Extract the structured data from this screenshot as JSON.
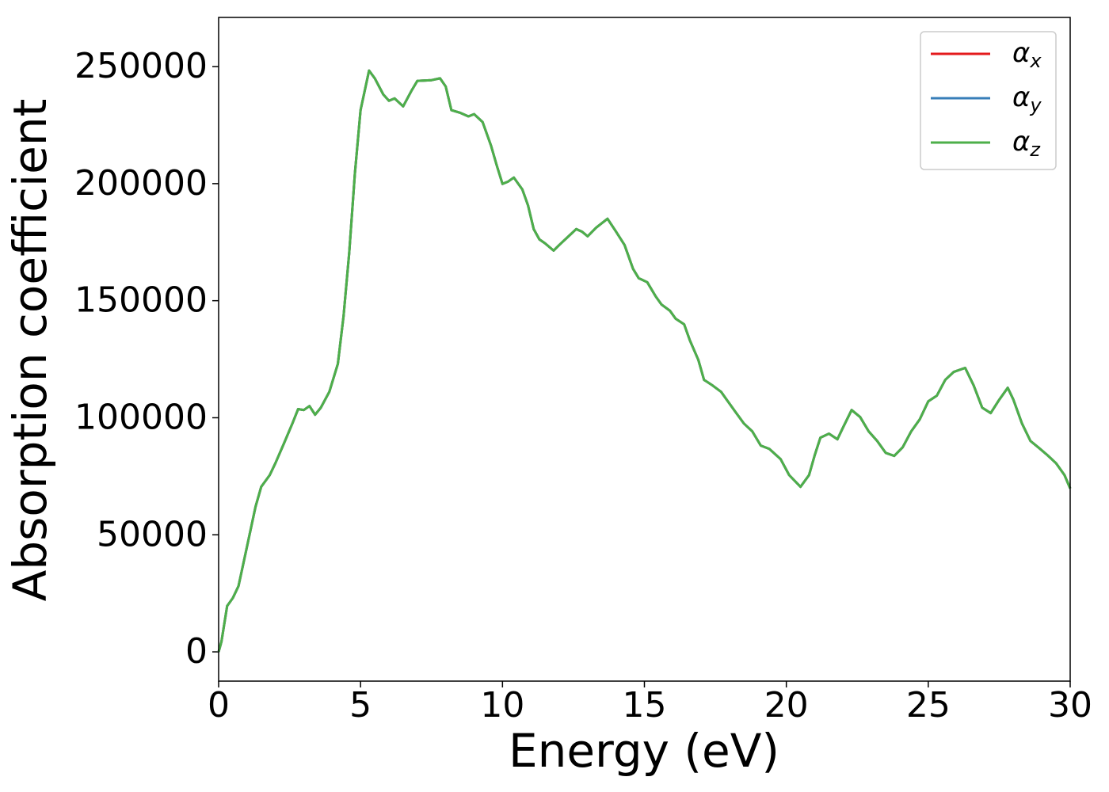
{
  "chart_data": {
    "type": "line",
    "x_label": "Energy (eV)",
    "y_label": "Absorption coefficient",
    "x": [
      0,
      0.1,
      0.3,
      0.5,
      0.7,
      1.0,
      1.3,
      1.5,
      1.8,
      2.0,
      2.3,
      2.6,
      2.8,
      3.0,
      3.2,
      3.4,
      3.6,
      3.9,
      4.2,
      4.4,
      4.6,
      4.8,
      5.0,
      5.3,
      5.5,
      5.8,
      6.0,
      6.2,
      6.5,
      6.8,
      7.0,
      7.5,
      7.8,
      8.0,
      8.2,
      8.5,
      8.8,
      9.0,
      9.3,
      9.6,
      9.8,
      10.0,
      10.2,
      10.4,
      10.7,
      10.9,
      11.1,
      11.3,
      11.5,
      11.8,
      12.0,
      12.3,
      12.6,
      12.8,
      13.0,
      13.3,
      13.7,
      14.0,
      14.3,
      14.6,
      14.8,
      15.1,
      15.4,
      15.6,
      15.9,
      16.1,
      16.4,
      16.6,
      16.9,
      17.1,
      17.4,
      17.7,
      17.9,
      18.2,
      18.5,
      18.8,
      19.1,
      19.4,
      19.8,
      20.1,
      20.5,
      20.8,
      21.0,
      21.2,
      21.5,
      21.8,
      22.0,
      22.3,
      22.6,
      22.9,
      23.2,
      23.5,
      23.8,
      24.1,
      24.4,
      24.7,
      25.0,
      25.3,
      25.6,
      25.9,
      26.3,
      26.6,
      26.9,
      27.2,
      27.5,
      27.8,
      28.0,
      28.3,
      28.6,
      28.9,
      29.2,
      29.5,
      29.8,
      30.0
    ],
    "series": [
      {
        "name": "αx",
        "color": "#e41a1c",
        "values": [
          0,
          4400,
          19600,
          23000,
          28100,
          45000,
          62000,
          70500,
          75500,
          80600,
          89000,
          97600,
          103700,
          103300,
          105000,
          101300,
          104300,
          111100,
          123000,
          143300,
          170400,
          204300,
          231400,
          248300,
          245000,
          238100,
          235400,
          236400,
          233000,
          239800,
          243900,
          244200,
          245000,
          241500,
          231400,
          230300,
          228700,
          229700,
          226300,
          216100,
          207700,
          199900,
          200900,
          202600,
          197500,
          190700,
          180600,
          176200,
          174500,
          171400,
          173800,
          177200,
          180600,
          179500,
          177500,
          181200,
          185000,
          179500,
          173800,
          163600,
          159600,
          157900,
          151800,
          148400,
          145700,
          142300,
          139900,
          133100,
          124700,
          116200,
          113800,
          111100,
          107700,
          102600,
          97600,
          94200,
          88100,
          86700,
          82300,
          75500,
          70500,
          75500,
          84000,
          91500,
          93200,
          90800,
          95900,
          103300,
          100300,
          94200,
          90100,
          85000,
          83700,
          87400,
          94200,
          99300,
          107000,
          109400,
          116200,
          119600,
          121300,
          113800,
          104300,
          102000,
          107700,
          112800,
          107700,
          97600,
          90100,
          87100,
          84000,
          80600,
          75500,
          69800
        ]
      },
      {
        "name": "αy",
        "color": "#377eb8",
        "values": [
          0,
          4400,
          19600,
          23000,
          28100,
          45000,
          62000,
          70500,
          75500,
          80600,
          89000,
          97600,
          103700,
          103300,
          105000,
          101300,
          104300,
          111100,
          123000,
          143300,
          170400,
          204300,
          231400,
          248300,
          245000,
          238100,
          235400,
          236400,
          233000,
          239800,
          243900,
          244200,
          245000,
          241500,
          231400,
          230300,
          228700,
          229700,
          226300,
          216100,
          207700,
          199900,
          200900,
          202600,
          197500,
          190700,
          180600,
          176200,
          174500,
          171400,
          173800,
          177200,
          180600,
          179500,
          177500,
          181200,
          185000,
          179500,
          173800,
          163600,
          159600,
          157900,
          151800,
          148400,
          145700,
          142300,
          139900,
          133100,
          124700,
          116200,
          113800,
          111100,
          107700,
          102600,
          97600,
          94200,
          88100,
          86700,
          82300,
          75500,
          70500,
          75500,
          84000,
          91500,
          93200,
          90800,
          95900,
          103300,
          100300,
          94200,
          90100,
          85000,
          83700,
          87400,
          94200,
          99300,
          107000,
          109400,
          116200,
          119600,
          121300,
          113800,
          104300,
          102000,
          107700,
          112800,
          107700,
          97600,
          90100,
          87100,
          84000,
          80600,
          75500,
          69800
        ]
      },
      {
        "name": "αz",
        "color": "#4daf4a",
        "values": [
          0,
          4400,
          19600,
          23000,
          28100,
          45000,
          62000,
          70500,
          75500,
          80600,
          89000,
          97600,
          103700,
          103300,
          105000,
          101300,
          104300,
          111100,
          123000,
          143300,
          170400,
          204300,
          231400,
          248300,
          245000,
          238100,
          235400,
          236400,
          233000,
          239800,
          243900,
          244200,
          245000,
          241500,
          231400,
          230300,
          228700,
          229700,
          226300,
          216100,
          207700,
          199900,
          200900,
          202600,
          197500,
          190700,
          180600,
          176200,
          174500,
          171400,
          173800,
          177200,
          180600,
          179500,
          177500,
          181200,
          185000,
          179500,
          173800,
          163600,
          159600,
          157900,
          151800,
          148400,
          145700,
          142300,
          139900,
          133100,
          124700,
          116200,
          113800,
          111100,
          107700,
          102600,
          97600,
          94200,
          88100,
          86700,
          82300,
          75500,
          70500,
          75500,
          84000,
          91500,
          93200,
          90800,
          95900,
          103300,
          100300,
          94200,
          90100,
          85000,
          83700,
          87400,
          94200,
          99300,
          107000,
          109400,
          116200,
          119600,
          121300,
          113800,
          104300,
          102000,
          107700,
          112800,
          107700,
          97600,
          90100,
          87100,
          84000,
          80600,
          75500,
          69800
        ]
      }
    ],
    "xlim": [
      0,
      30
    ],
    "xticks": [
      0,
      5,
      10,
      15,
      20,
      25,
      30
    ],
    "ylim": [
      -12500,
      271000
    ],
    "yticks": [
      0,
      50000,
      100000,
      150000,
      200000,
      250000
    ],
    "legend": "upper right"
  }
}
